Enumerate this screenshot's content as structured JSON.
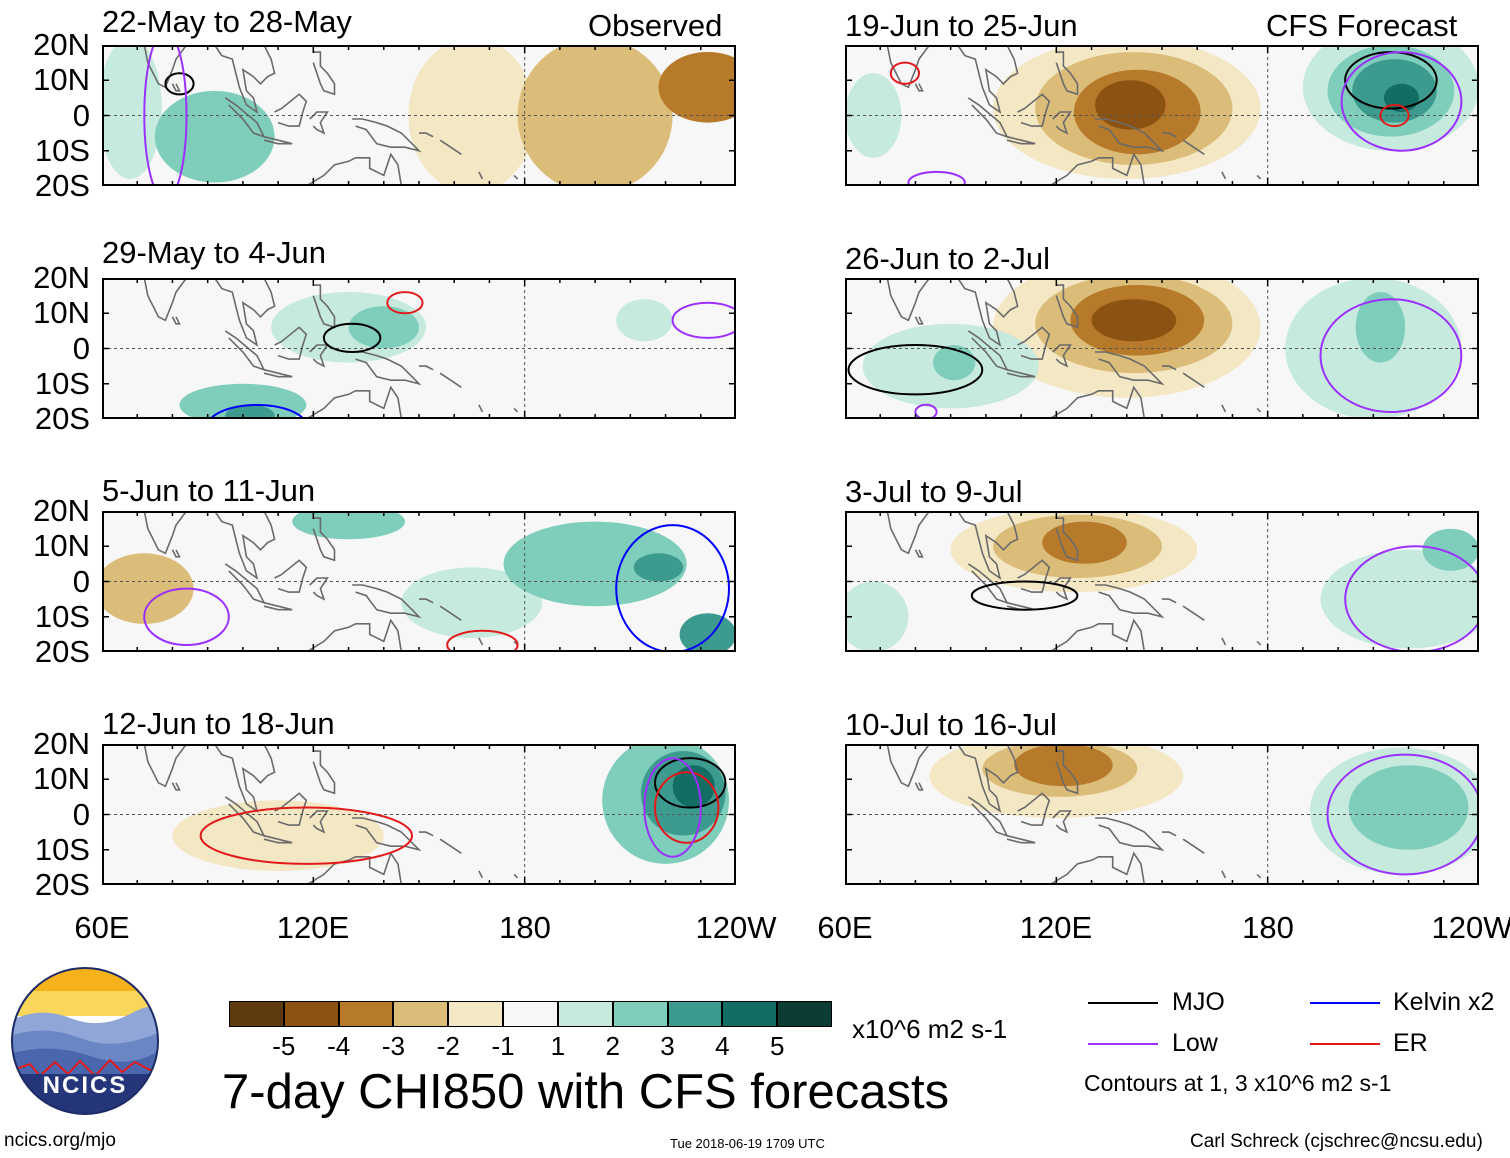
{
  "chart_data": {
    "type": "heatmap",
    "title": "7-day CHI850 with CFS forecasts",
    "variable": "CHI850 (850-hPa velocity potential) anomaly",
    "units": "x10^6 m2 s-1",
    "lat_ticks": [
      "20N",
      "10N",
      "0",
      "10S",
      "20S"
    ],
    "lon_ticks": [
      "60E",
      "120E",
      "180",
      "120W"
    ],
    "lat_range": [
      -20,
      20
    ],
    "lon_range": [
      60,
      240
    ],
    "colorbar": {
      "levels": [
        "-5",
        "-4",
        "-3",
        "-2",
        "-1",
        "1",
        "2",
        "3",
        "4",
        "5"
      ],
      "colors": [
        "#5e3a0e",
        "#8b5212",
        "#b77a2a",
        "#dbbd79",
        "#f3e7c4",
        "#f7f7f7",
        "#c7eadf",
        "#7fcdbb",
        "#3d9a8f",
        "#126d63",
        "#0b3d35"
      ]
    },
    "contour_legend": {
      "mjo": {
        "label": "MJO",
        "color": "#000000"
      },
      "low": {
        "label": "Low",
        "color": "#9b30ff"
      },
      "kelvin": {
        "label": "Kelvin x2",
        "color": "#0000ff"
      },
      "er": {
        "label": "ER",
        "color": "#e31a1c"
      },
      "note": "Contours at 1, 3 x10^6 m2 s-1"
    },
    "panels": [
      {
        "id": "obs1",
        "period": "22-May to 28-May",
        "tag": "Observed",
        "kind": "observed",
        "blobs": [
          {
            "lon": 68,
            "lat": 2,
            "rx": 9,
            "ry": 20,
            "level": 1
          },
          {
            "lon": 92,
            "lat": -6,
            "rx": 17,
            "ry": 13,
            "level": 2
          },
          {
            "lon": 165,
            "lat": 0,
            "rx": 18,
            "ry": 22,
            "level": -1
          },
          {
            "lon": 200,
            "lat": 0,
            "rx": 22,
            "ry": 22,
            "level": -2
          },
          {
            "lon": 232,
            "lat": 8,
            "rx": 14,
            "ry": 10,
            "level": -3
          }
        ],
        "contours": [
          {
            "type": "mjo",
            "lon": 82,
            "lat": 9,
            "rx": 4,
            "ry": 3
          },
          {
            "type": "low",
            "lon": 78,
            "lat": 0,
            "rx": 6,
            "ry": 24
          }
        ]
      },
      {
        "id": "obs2",
        "period": "29-May to 4-Jun",
        "tag": "",
        "kind": "observed",
        "blobs": [
          {
            "lon": 130,
            "lat": 6,
            "rx": 22,
            "ry": 10,
            "level": 1
          },
          {
            "lon": 140,
            "lat": 6,
            "rx": 10,
            "ry": 6,
            "level": 2
          },
          {
            "lon": 100,
            "lat": -16,
            "rx": 18,
            "ry": 6,
            "level": 2
          },
          {
            "lon": 102,
            "lat": -19,
            "rx": 7,
            "ry": 3,
            "level": 3
          },
          {
            "lon": 214,
            "lat": 8,
            "rx": 8,
            "ry": 6,
            "level": 1
          }
        ],
        "contours": [
          {
            "type": "mjo",
            "lon": 131,
            "lat": 3,
            "rx": 8,
            "ry": 4
          },
          {
            "type": "er",
            "lon": 146,
            "lat": 13,
            "rx": 5,
            "ry": 3
          },
          {
            "type": "kelvin",
            "lon": 104,
            "lat": -22,
            "rx": 14,
            "ry": 6
          },
          {
            "type": "low",
            "lon": 232,
            "lat": 8,
            "rx": 10,
            "ry": 5
          }
        ]
      },
      {
        "id": "obs3",
        "period": "5-Jun to 11-Jun",
        "tag": "",
        "kind": "observed",
        "blobs": [
          {
            "lon": 72,
            "lat": -2,
            "rx": 14,
            "ry": 10,
            "level": -2
          },
          {
            "lon": 130,
            "lat": 17,
            "rx": 16,
            "ry": 5,
            "level": 2
          },
          {
            "lon": 200,
            "lat": 5,
            "rx": 26,
            "ry": 12,
            "level": 2
          },
          {
            "lon": 218,
            "lat": 4,
            "rx": 7,
            "ry": 4,
            "level": 3
          },
          {
            "lon": 165,
            "lat": -6,
            "rx": 20,
            "ry": 10,
            "level": 1
          },
          {
            "lon": 232,
            "lat": -15,
            "rx": 8,
            "ry": 6,
            "level": 3
          }
        ],
        "contours": [
          {
            "type": "low",
            "lon": 84,
            "lat": -10,
            "rx": 12,
            "ry": 8
          },
          {
            "type": "kelvin",
            "lon": 222,
            "lat": -2,
            "rx": 16,
            "ry": 18
          },
          {
            "type": "er",
            "lon": 168,
            "lat": -18,
            "rx": 10,
            "ry": 4
          }
        ]
      },
      {
        "id": "obs4",
        "period": "12-Jun to 18-Jun",
        "tag": "",
        "kind": "observed",
        "blobs": [
          {
            "lon": 110,
            "lat": -6,
            "rx": 30,
            "ry": 10,
            "level": -1
          },
          {
            "lon": 220,
            "lat": 4,
            "rx": 18,
            "ry": 18,
            "level": 2
          },
          {
            "lon": 225,
            "lat": 6,
            "rx": 12,
            "ry": 12,
            "level": 3
          },
          {
            "lon": 228,
            "lat": 8,
            "rx": 6,
            "ry": 6,
            "level": 4
          }
        ],
        "contours": [
          {
            "type": "mjo",
            "lon": 227,
            "lat": 9,
            "rx": 10,
            "ry": 7
          },
          {
            "type": "er",
            "lon": 118,
            "lat": -6,
            "rx": 30,
            "ry": 8
          },
          {
            "type": "er",
            "lon": 226,
            "lat": 2,
            "rx": 9,
            "ry": 10
          },
          {
            "type": "low",
            "lon": 222,
            "lat": 2,
            "rx": 8,
            "ry": 14
          }
        ]
      },
      {
        "id": "fc1",
        "period": "19-Jun to 25-Jun",
        "tag": "CFS Forecast",
        "kind": "forecast",
        "blobs": [
          {
            "lon": 140,
            "lat": 2,
            "rx": 38,
            "ry": 20,
            "level": -1
          },
          {
            "lon": 142,
            "lat": 2,
            "rx": 28,
            "ry": 16,
            "level": -2
          },
          {
            "lon": 143,
            "lat": 1,
            "rx": 18,
            "ry": 12,
            "level": -3
          },
          {
            "lon": 141,
            "lat": 3,
            "rx": 10,
            "ry": 7,
            "level": -4
          },
          {
            "lon": 215,
            "lat": 8,
            "rx": 25,
            "ry": 18,
            "level": 1
          },
          {
            "lon": 215,
            "lat": 7,
            "rx": 18,
            "ry": 13,
            "level": 2
          },
          {
            "lon": 216,
            "lat": 7,
            "rx": 12,
            "ry": 9,
            "level": 3
          },
          {
            "lon": 218,
            "lat": 5,
            "rx": 5,
            "ry": 4,
            "level": 4
          },
          {
            "lon": 68,
            "lat": 0,
            "rx": 8,
            "ry": 12,
            "level": 1
          }
        ],
        "contours": [
          {
            "type": "mjo",
            "lon": 215,
            "lat": 10,
            "rx": 13,
            "ry": 8
          },
          {
            "type": "er",
            "lon": 216,
            "lat": 0,
            "rx": 4,
            "ry": 3
          },
          {
            "type": "er",
            "lon": 77,
            "lat": 12,
            "rx": 4,
            "ry": 3
          },
          {
            "type": "low",
            "lon": 218,
            "lat": 4,
            "rx": 17,
            "ry": 14
          },
          {
            "type": "low",
            "lon": 86,
            "lat": -19,
            "rx": 8,
            "ry": 3
          }
        ]
      },
      {
        "id": "fc2",
        "period": "26-Jun to 2-Jul",
        "tag": "",
        "kind": "forecast",
        "blobs": [
          {
            "lon": 140,
            "lat": 6,
            "rx": 38,
            "ry": 20,
            "level": -1
          },
          {
            "lon": 142,
            "lat": 7,
            "rx": 28,
            "ry": 14,
            "level": -2
          },
          {
            "lon": 143,
            "lat": 8,
            "rx": 19,
            "ry": 10,
            "level": -3
          },
          {
            "lon": 142,
            "lat": 8,
            "rx": 12,
            "ry": 6,
            "level": -4
          },
          {
            "lon": 210,
            "lat": 0,
            "rx": 25,
            "ry": 20,
            "level": 1
          },
          {
            "lon": 212,
            "lat": 6,
            "rx": 7,
            "ry": 10,
            "level": 2
          },
          {
            "lon": 90,
            "lat": -5,
            "rx": 25,
            "ry": 12,
            "level": 1
          },
          {
            "lon": 91,
            "lat": -4,
            "rx": 6,
            "ry": 5,
            "level": 2
          }
        ],
        "contours": [
          {
            "type": "mjo",
            "lon": 80,
            "lat": -6,
            "rx": 19,
            "ry": 7
          },
          {
            "type": "low",
            "lon": 215,
            "lat": -2,
            "rx": 20,
            "ry": 16
          },
          {
            "type": "low",
            "lon": 83,
            "lat": -18,
            "rx": 3,
            "ry": 2
          }
        ]
      },
      {
        "id": "fc3",
        "period": "3-Jul to 9-Jul",
        "tag": "",
        "kind": "forecast",
        "blobs": [
          {
            "lon": 125,
            "lat": 9,
            "rx": 35,
            "ry": 12,
            "level": -1
          },
          {
            "lon": 126,
            "lat": 10,
            "rx": 24,
            "ry": 9,
            "level": -2
          },
          {
            "lon": 128,
            "lat": 11,
            "rx": 12,
            "ry": 6,
            "level": -3
          },
          {
            "lon": 220,
            "lat": -5,
            "rx": 25,
            "ry": 14,
            "level": 1
          },
          {
            "lon": 232,
            "lat": 9,
            "rx": 8,
            "ry": 6,
            "level": 2
          },
          {
            "lon": 68,
            "lat": -10,
            "rx": 10,
            "ry": 10,
            "level": 1
          }
        ],
        "contours": [
          {
            "type": "mjo",
            "lon": 111,
            "lat": -4,
            "rx": 15,
            "ry": 4
          },
          {
            "type": "low",
            "lon": 222,
            "lat": -5,
            "rx": 20,
            "ry": 15
          }
        ]
      },
      {
        "id": "fc4",
        "period": "10-Jul to 16-Jul",
        "tag": "",
        "kind": "forecast",
        "blobs": [
          {
            "lon": 120,
            "lat": 11,
            "rx": 36,
            "ry": 12,
            "level": -1
          },
          {
            "lon": 121,
            "lat": 13,
            "rx": 22,
            "ry": 8,
            "level": -2
          },
          {
            "lon": 122,
            "lat": 14,
            "rx": 14,
            "ry": 6,
            "level": -3
          },
          {
            "lon": 218,
            "lat": 1,
            "rx": 26,
            "ry": 18,
            "level": 1
          },
          {
            "lon": 220,
            "lat": 2,
            "rx": 17,
            "ry": 12,
            "level": 2
          }
        ],
        "contours": [
          {
            "type": "low",
            "lon": 219,
            "lat": 0,
            "rx": 22,
            "ry": 17
          }
        ]
      }
    ]
  },
  "logo": {
    "text": "NCICS"
  },
  "footer": {
    "url": "ncics.org/mjo",
    "timestamp": "Tue 2018-06-19 1709 UTC",
    "credit": "Carl Schreck (cjschrec@ncsu.edu)"
  }
}
